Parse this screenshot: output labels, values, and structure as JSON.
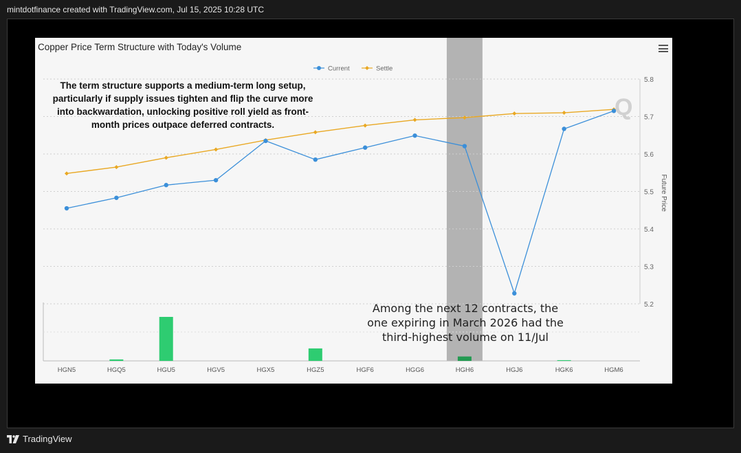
{
  "header": {
    "caption": "mintdotfinance created with TradingView.com, Jul 15, 2025 10:28 UTC"
  },
  "footer": {
    "brand": "TradingView"
  },
  "annotations": {
    "main": "The term structure supports a medium-term long setup, particularly if supply issues tighten and flip the curve more into backwardation, unlocking positive roll yield as front-month prices outpace deferred contracts.",
    "volume": "Among the next 12 contracts, the one expiring in March 2026 had the third-highest volume on 11/Jul"
  },
  "chart_data": {
    "type": "line",
    "title": "Copper Price Term Structure with Today's Volume",
    "categories": [
      "HGN5",
      "HGQ5",
      "HGU5",
      "HGV5",
      "HGX5",
      "HGZ5",
      "HGF6",
      "HGG6",
      "HGH6",
      "HGJ6",
      "HGK6",
      "HGM6"
    ],
    "series": [
      {
        "name": "Current",
        "color": "#3b8fd9",
        "values": [
          5.455,
          5.483,
          5.517,
          5.53,
          5.635,
          5.585,
          5.617,
          5.649,
          5.621,
          5.228,
          5.667,
          5.715
        ]
      },
      {
        "name": "Settle",
        "color": "#e9a823",
        "values": [
          5.548,
          5.565,
          5.59,
          5.612,
          5.637,
          5.658,
          5.676,
          5.691,
          5.697,
          5.708,
          5.71,
          5.719
        ]
      }
    ],
    "volume": {
      "values": [
        0,
        2,
        60,
        0,
        0,
        17,
        0,
        0,
        6,
        0,
        1,
        0
      ],
      "color": "#2ecc71",
      "highlight_color": "#239a52"
    },
    "highlight_category": "HGH6",
    "ylabel": "Future Price",
    "ylim": [
      5.2,
      5.8
    ],
    "yticks": [
      "5.2",
      "5.3",
      "5.4",
      "5.5",
      "5.6",
      "5.7",
      "5.8"
    ],
    "legend_position": "top-center",
    "grid": true
  }
}
